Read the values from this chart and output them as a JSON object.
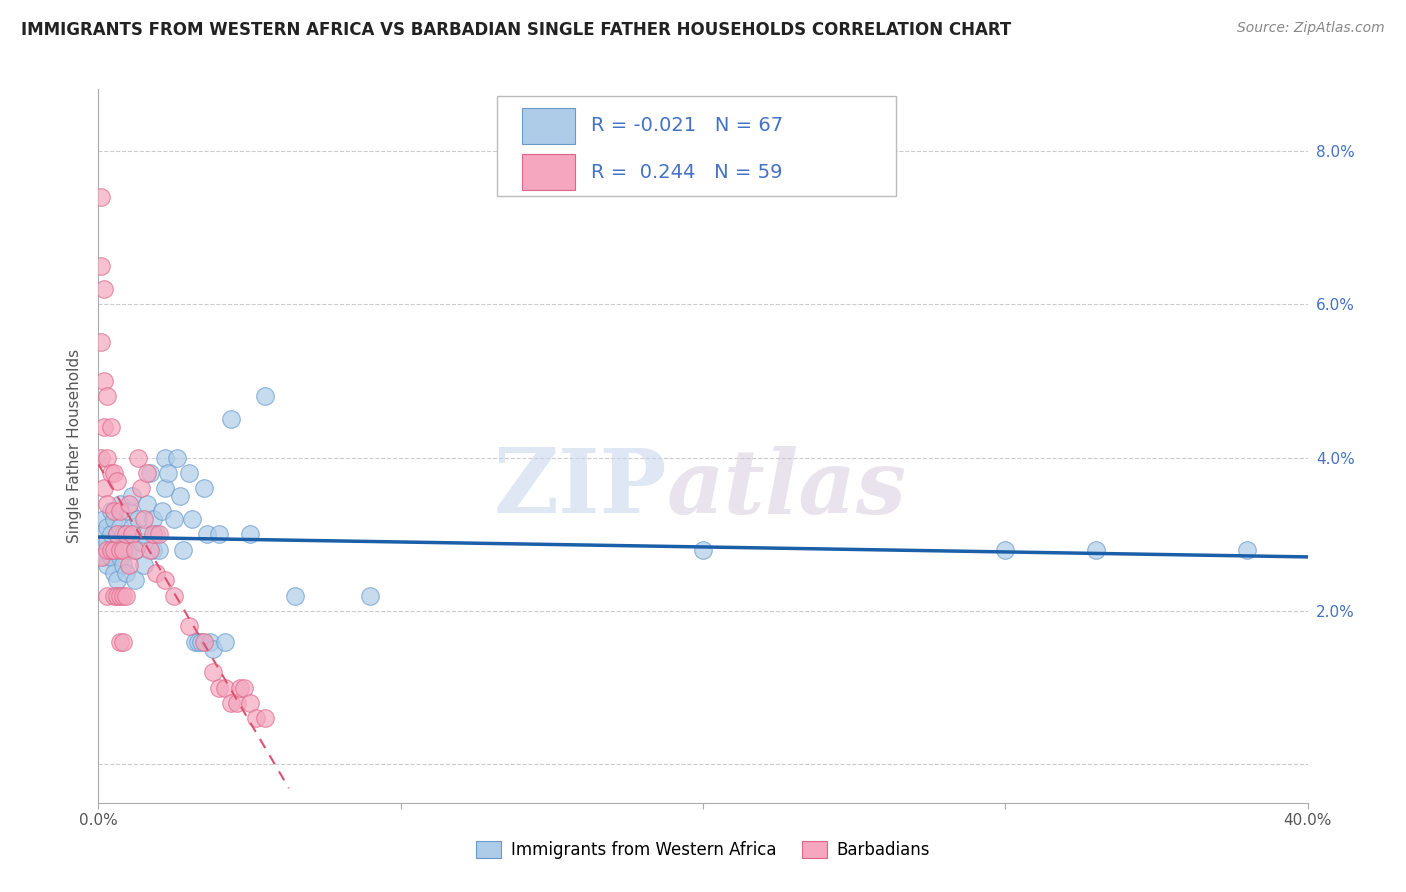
{
  "title": "IMMIGRANTS FROM WESTERN AFRICA VS BARBADIAN SINGLE FATHER HOUSEHOLDS CORRELATION CHART",
  "source": "Source: ZipAtlas.com",
  "ylabel": "Single Father Households",
  "xlim": [
    0.0,
    0.4
  ],
  "ylim": [
    -0.005,
    0.088
  ],
  "yticks": [
    0.0,
    0.02,
    0.04,
    0.06,
    0.08
  ],
  "ytick_labels_right": [
    "",
    "2.0%",
    "4.0%",
    "6.0%",
    "8.0%"
  ],
  "xticks": [
    0.0,
    0.1,
    0.2,
    0.3,
    0.4
  ],
  "xtick_labels": [
    "0.0%",
    "",
    "",
    "",
    "40.0%"
  ],
  "legend_labels": [
    "Immigrants from Western Africa",
    "Barbadians"
  ],
  "blue_color": "#aecce8",
  "pink_color": "#f4a7be",
  "blue_R": -0.021,
  "blue_N": 67,
  "pink_R": 0.244,
  "pink_N": 59,
  "watermark_zip": "ZIP",
  "watermark_atlas": "atlas",
  "blue_line_color": "#1a5fa8",
  "pink_line_color": "#e05070",
  "blue_scatter_x": [
    0.001,
    0.001,
    0.002,
    0.002,
    0.003,
    0.003,
    0.003,
    0.004,
    0.004,
    0.004,
    0.005,
    0.005,
    0.005,
    0.006,
    0.006,
    0.006,
    0.007,
    0.007,
    0.007,
    0.008,
    0.008,
    0.009,
    0.009,
    0.01,
    0.01,
    0.011,
    0.011,
    0.012,
    0.012,
    0.013,
    0.014,
    0.015,
    0.015,
    0.016,
    0.017,
    0.018,
    0.018,
    0.019,
    0.02,
    0.021,
    0.022,
    0.022,
    0.023,
    0.025,
    0.026,
    0.027,
    0.028,
    0.03,
    0.031,
    0.032,
    0.033,
    0.034,
    0.035,
    0.036,
    0.037,
    0.038,
    0.04,
    0.042,
    0.044,
    0.05,
    0.055,
    0.065,
    0.09,
    0.2,
    0.3,
    0.33,
    0.38
  ],
  "blue_scatter_y": [
    0.03,
    0.028,
    0.032,
    0.027,
    0.031,
    0.026,
    0.029,
    0.03,
    0.027,
    0.033,
    0.025,
    0.028,
    0.032,
    0.03,
    0.028,
    0.024,
    0.027,
    0.031,
    0.034,
    0.026,
    0.03,
    0.025,
    0.029,
    0.028,
    0.033,
    0.031,
    0.035,
    0.028,
    0.024,
    0.032,
    0.029,
    0.03,
    0.026,
    0.034,
    0.038,
    0.028,
    0.032,
    0.03,
    0.028,
    0.033,
    0.04,
    0.036,
    0.038,
    0.032,
    0.04,
    0.035,
    0.028,
    0.038,
    0.032,
    0.016,
    0.016,
    0.016,
    0.036,
    0.03,
    0.016,
    0.015,
    0.03,
    0.016,
    0.045,
    0.03,
    0.048,
    0.022,
    0.022,
    0.028,
    0.028,
    0.028,
    0.028
  ],
  "pink_scatter_x": [
    0.001,
    0.001,
    0.001,
    0.001,
    0.001,
    0.002,
    0.002,
    0.002,
    0.002,
    0.003,
    0.003,
    0.003,
    0.003,
    0.003,
    0.004,
    0.004,
    0.004,
    0.005,
    0.005,
    0.005,
    0.005,
    0.006,
    0.006,
    0.006,
    0.007,
    0.007,
    0.007,
    0.007,
    0.008,
    0.008,
    0.008,
    0.009,
    0.009,
    0.01,
    0.01,
    0.011,
    0.012,
    0.013,
    0.014,
    0.015,
    0.016,
    0.017,
    0.018,
    0.019,
    0.02,
    0.022,
    0.025,
    0.03,
    0.035,
    0.038,
    0.04,
    0.042,
    0.044,
    0.046,
    0.047,
    0.048,
    0.05,
    0.052,
    0.055
  ],
  "pink_scatter_y": [
    0.074,
    0.065,
    0.055,
    0.04,
    0.027,
    0.062,
    0.05,
    0.044,
    0.036,
    0.048,
    0.04,
    0.034,
    0.028,
    0.022,
    0.044,
    0.038,
    0.028,
    0.038,
    0.033,
    0.028,
    0.022,
    0.037,
    0.03,
    0.022,
    0.033,
    0.028,
    0.022,
    0.016,
    0.028,
    0.022,
    0.016,
    0.03,
    0.022,
    0.034,
    0.026,
    0.03,
    0.028,
    0.04,
    0.036,
    0.032,
    0.038,
    0.028,
    0.03,
    0.025,
    0.03,
    0.024,
    0.022,
    0.018,
    0.016,
    0.012,
    0.01,
    0.01,
    0.008,
    0.008,
    0.01,
    0.01,
    0.008,
    0.006,
    0.006
  ]
}
